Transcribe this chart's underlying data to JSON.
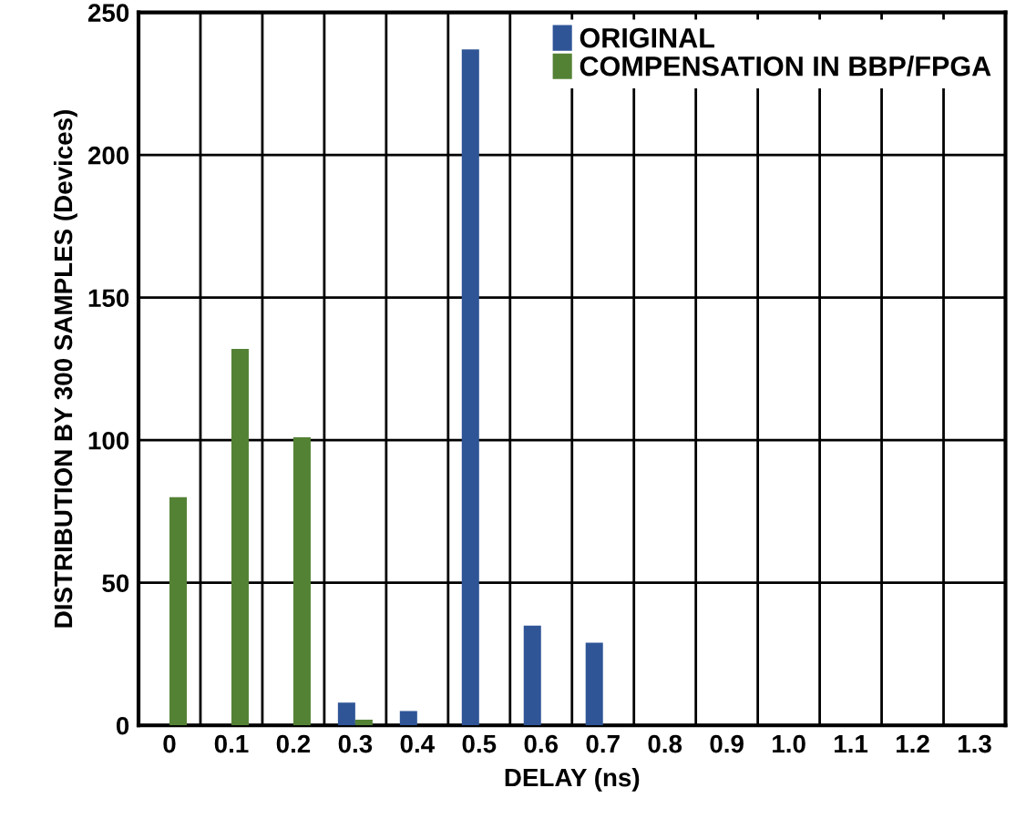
{
  "chart_data": {
    "type": "bar",
    "xlabel": "DELAY (ns)",
    "ylabel": "DISTRIBUTION BY 300 SAMPLES (Devices)",
    "categories": [
      "0",
      "0.1",
      "0.2",
      "0.3",
      "0.4",
      "0.5",
      "0.6",
      "0.7",
      "0.8",
      "0.9",
      "1.0",
      "1.1",
      "1.2",
      "1.3"
    ],
    "series": [
      {
        "name": "ORIGINAL",
        "color": "#2f5597",
        "values": [
          0,
          0,
          0,
          8,
          5,
          237,
          35,
          29,
          0,
          0,
          0,
          0,
          0,
          0
        ]
      },
      {
        "name": "COMPENSATION IN BBP/FPGA",
        "color": "#548235",
        "values": [
          80,
          132,
          101,
          2,
          0,
          0,
          0,
          0,
          0,
          0,
          0,
          0,
          0,
          0
        ]
      }
    ],
    "ylim": [
      0,
      250
    ],
    "yticks": [
      0,
      50,
      100,
      150,
      200,
      250
    ],
    "grid": true,
    "legend": "top right"
  }
}
